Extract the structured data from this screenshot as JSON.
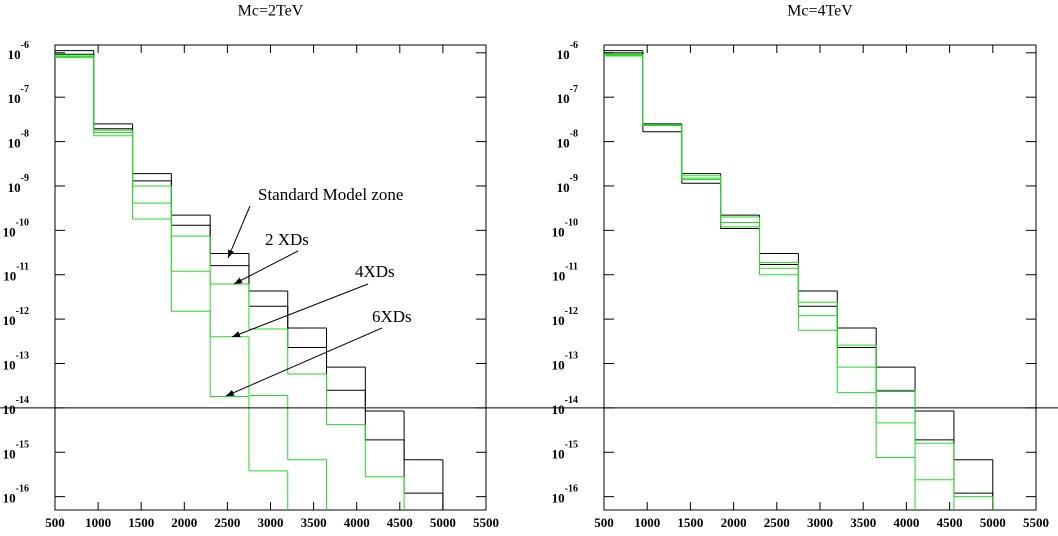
{
  "chart_data": [
    {
      "type": "histogram",
      "title": "Mc=2TeV",
      "log_y": true,
      "bins": [
        500,
        950,
        1400,
        1850,
        2300,
        2750,
        3200,
        3650,
        4100,
        4550,
        5000
      ],
      "xlim": [
        500,
        5500
      ],
      "xticks": [
        500,
        1000,
        1500,
        2000,
        2500,
        3000,
        3500,
        4000,
        4500,
        5000,
        5500
      ],
      "ylim": [
        5e-17,
        1.5e-06
      ],
      "yticks": [
        {
          "value": 1e-06,
          "label": "10-6"
        },
        {
          "value": 1e-07,
          "label": "10-7"
        },
        {
          "value": 1e-08,
          "label": "10-8"
        },
        {
          "value": 1e-09,
          "label": "10-9"
        },
        {
          "value": 1e-10,
          "label": "10-10"
        },
        {
          "value": 1e-11,
          "label": "10-11"
        },
        {
          "value": 1e-12,
          "label": "10-12"
        },
        {
          "value": 1e-13,
          "label": "10-13"
        },
        {
          "value": 1e-14,
          "label": "10-14"
        },
        {
          "value": 1e-15,
          "label": "10-15"
        },
        {
          "value": 1e-16,
          "label": "10-16"
        }
      ],
      "hline": 1e-14,
      "series": [
        {
          "color": "#000000",
          "values": [
            1.12e-06,
            2.5e-08,
            1.9e-09,
            2.2e-10,
            3e-11,
            4.3e-12,
            6.3e-13,
            8.3e-14,
            8.5e-15,
            6.8e-16
          ]
        },
        {
          "color": "#000000",
          "values": [
            9.3e-07,
            1.95e-08,
            1.3e-09,
            1.3e-10,
            1.6e-11,
            1.95e-12,
            2.3e-13,
            2.5e-14,
            1.9e-15,
            1.2e-16
          ]
        },
        {
          "color": "#22dd22",
          "values": [
            8.9e-07,
            1.8e-08,
            1e-09,
            7.4e-11,
            6.2e-12,
            6e-13,
            5.8e-14,
            4.2e-15,
            2.8e-16,
            null
          ]
        },
        {
          "color": "#22dd22",
          "values": [
            8.3e-07,
            1.6e-08,
            4.1e-10,
            1.2e-11,
            4e-13,
            1.9e-14,
            6.8e-16,
            null,
            null,
            null
          ]
        },
        {
          "color": "#22dd22",
          "values": [
            7.9e-07,
            1.35e-08,
            1.8e-10,
            1.5e-12,
            1.8e-14,
            3.8e-16,
            null,
            null,
            null,
            null
          ]
        }
      ],
      "annotations": [
        {
          "text": "Standard Model zone"
        },
        {
          "text": "2 XDs"
        },
        {
          "text": "4XDs"
        },
        {
          "text": "6XDs"
        }
      ]
    },
    {
      "type": "histogram",
      "title": "Mc=4TeV",
      "log_y": true,
      "bins": [
        500,
        950,
        1400,
        1850,
        2300,
        2750,
        3200,
        3650,
        4100,
        4550,
        5000
      ],
      "xlim": [
        500,
        5500
      ],
      "xticks": [
        500,
        1000,
        1500,
        2000,
        2500,
        3000,
        3500,
        4000,
        4500,
        5000,
        5500
      ],
      "ylim": [
        5e-17,
        1.5e-06
      ],
      "yticks": [
        {
          "value": 1e-06,
          "label": "10-6"
        },
        {
          "value": 1e-07,
          "label": "10-7"
        },
        {
          "value": 1e-08,
          "label": "10-8"
        },
        {
          "value": 1e-09,
          "label": "10-9"
        },
        {
          "value": 1e-10,
          "label": "10-10"
        },
        {
          "value": 1e-11,
          "label": "10-11"
        },
        {
          "value": 1e-12,
          "label": "10-12"
        },
        {
          "value": 1e-13,
          "label": "10-13"
        },
        {
          "value": 1e-14,
          "label": "10-14"
        },
        {
          "value": 1e-15,
          "label": "10-15"
        },
        {
          "value": 1e-16,
          "label": "10-16"
        }
      ],
      "series": [
        {
          "color": "#000000",
          "values": [
            1.12e-06,
            2.5e-08,
            1.9e-09,
            2.2e-10,
            3e-11,
            4.3e-12,
            6.3e-13,
            8.3e-14,
            8.5e-15,
            6.8e-16
          ]
        },
        {
          "color": "#000000",
          "values": [
            1e-06,
            1.66e-08,
            1.15e-09,
            1.1e-10,
            1.7e-11,
            1.95e-12,
            2.3e-13,
            2.4e-14,
            1.9e-15,
            1.2e-16
          ]
        },
        {
          "color": "#22dd22",
          "values": [
            9.3e-07,
            2.4e-08,
            1.7e-09,
            2e-10,
            1.9e-11,
            2.4e-12,
            2.6e-13,
            2.5e-14,
            1.6e-15,
            1e-16
          ]
        },
        {
          "color": "#22dd22",
          "values": [
            8.9e-07,
            2.3e-08,
            1.5e-09,
            1.5e-10,
            1.4e-11,
            1.2e-12,
            8.3e-14,
            4.6e-15,
            2.4e-16,
            null
          ]
        },
        {
          "color": "#22dd22",
          "values": [
            8.5e-07,
            2.3e-08,
            1.4e-09,
            1.2e-10,
            1e-11,
            5.6e-13,
            2.2e-14,
            7.6e-16,
            null,
            null
          ]
        }
      ]
    }
  ]
}
